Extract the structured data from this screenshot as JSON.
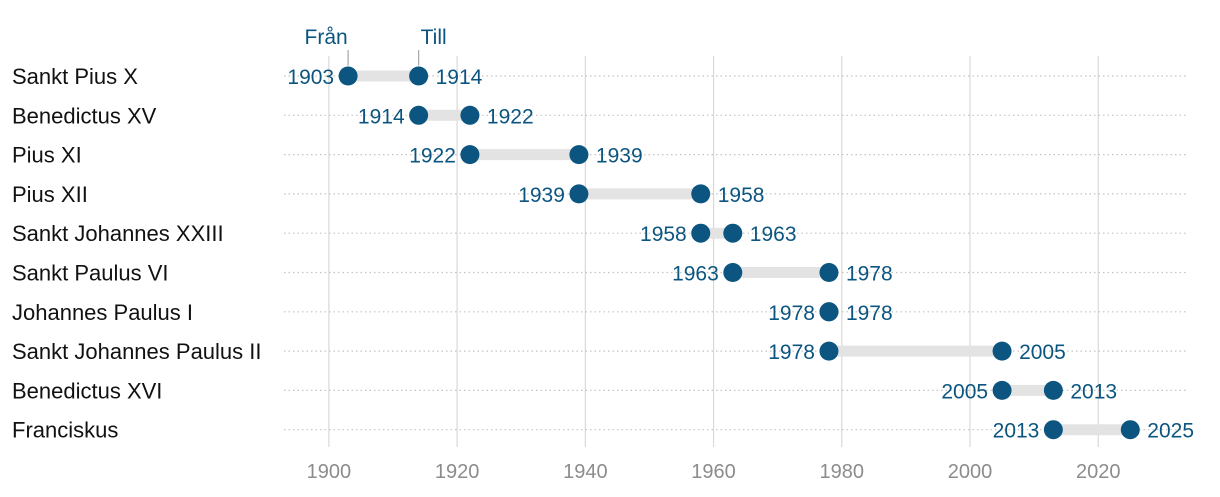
{
  "chart_data": {
    "type": "dumbbell",
    "title": "",
    "xlabel": "",
    "ylabel": "",
    "xlim": [
      1893,
      2034
    ],
    "x_ticks": [
      1900,
      1920,
      1940,
      1960,
      1980,
      2000,
      2020
    ],
    "x_tick_labels": [
      "1900",
      "1920",
      "1940",
      "1960",
      "1980",
      "2000",
      "2020"
    ],
    "legend": {
      "start_label": "Från",
      "end_label": "Till"
    },
    "colors": {
      "point": "#0c5580",
      "bar": "#e3e3e3",
      "grid": "#d9d9d9",
      "row_line": "#c4c4c4"
    },
    "rows": [
      {
        "name": "Sankt Pius X",
        "start": 1903,
        "end": 1914,
        "start_label": "1903",
        "end_label": "1914"
      },
      {
        "name": "Benedictus XV",
        "start": 1914,
        "end": 1922,
        "start_label": "1914",
        "end_label": "1922"
      },
      {
        "name": "Pius XI",
        "start": 1922,
        "end": 1939,
        "start_label": "1922",
        "end_label": "1939"
      },
      {
        "name": "Pius XII",
        "start": 1939,
        "end": 1958,
        "start_label": "1939",
        "end_label": "1958"
      },
      {
        "name": "Sankt Johannes XXIII",
        "start": 1958,
        "end": 1963,
        "start_label": "1958",
        "end_label": "1963"
      },
      {
        "name": "Sankt Paulus VI",
        "start": 1963,
        "end": 1978,
        "start_label": "1963",
        "end_label": "1978"
      },
      {
        "name": "Johannes Paulus I",
        "start": 1978,
        "end": 1978,
        "start_label": "1978",
        "end_label": "1978"
      },
      {
        "name": "Sankt Johannes Paulus II",
        "start": 1978,
        "end": 2005,
        "start_label": "1978",
        "end_label": "2005"
      },
      {
        "name": "Benedictus XVI",
        "start": 2005,
        "end": 2013,
        "start_label": "2005",
        "end_label": "2013"
      },
      {
        "name": "Franciskus",
        "start": 2013,
        "end": 2025,
        "start_label": "2013",
        "end_label": "2025"
      }
    ]
  }
}
